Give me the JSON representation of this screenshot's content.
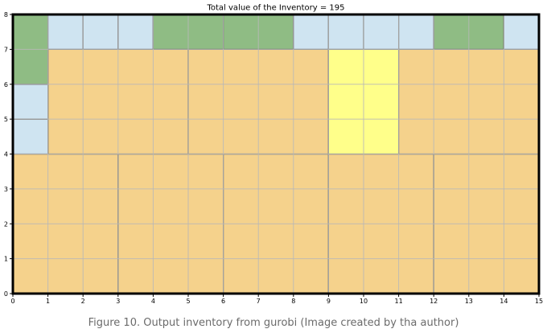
{
  "caption": "Figure 10. Output inventory from gurobi (Image created by tha author)",
  "colors": {
    "orange": "#f5d28c",
    "yellow": "#ffff8a",
    "green": "#8fbc84",
    "blue": "#cfe4f1",
    "grid": "#b8b8b8",
    "edge": "#000000"
  },
  "chart_data": {
    "type": "packing-layout",
    "title": "Total value of the Inventory = 195",
    "xlabel": "",
    "ylabel": "",
    "xlim": [
      0,
      15
    ],
    "ylim": [
      0,
      8
    ],
    "xticks": [
      0,
      1,
      2,
      3,
      4,
      5,
      6,
      7,
      8,
      9,
      10,
      11,
      12,
      13,
      14,
      15
    ],
    "yticks": [
      0,
      1,
      2,
      3,
      4,
      5,
      6,
      7,
      8
    ],
    "grid": true,
    "items": [
      {
        "x": 0,
        "y": 0,
        "w": 3,
        "h": 4,
        "color": "orange"
      },
      {
        "x": 3,
        "y": 0,
        "w": 3,
        "h": 4,
        "color": "orange"
      },
      {
        "x": 6,
        "y": 0,
        "w": 3,
        "h": 4,
        "color": "orange"
      },
      {
        "x": 9,
        "y": 0,
        "w": 3,
        "h": 4,
        "color": "orange"
      },
      {
        "x": 12,
        "y": 0,
        "w": 3,
        "h": 4,
        "color": "orange"
      },
      {
        "x": 1,
        "y": 4,
        "w": 4,
        "h": 3,
        "color": "orange"
      },
      {
        "x": 5,
        "y": 4,
        "w": 4,
        "h": 3,
        "color": "orange"
      },
      {
        "x": 9,
        "y": 4,
        "w": 2,
        "h": 3,
        "color": "yellow"
      },
      {
        "x": 11,
        "y": 4,
        "w": 4,
        "h": 3,
        "color": "orange"
      },
      {
        "x": 0,
        "y": 4,
        "w": 1,
        "h": 1,
        "color": "blue"
      },
      {
        "x": 0,
        "y": 5,
        "w": 1,
        "h": 1,
        "color": "blue"
      },
      {
        "x": 0,
        "y": 6,
        "w": 1,
        "h": 2,
        "color": "green"
      },
      {
        "x": 1,
        "y": 7,
        "w": 1,
        "h": 1,
        "color": "blue"
      },
      {
        "x": 2,
        "y": 7,
        "w": 1,
        "h": 1,
        "color": "blue"
      },
      {
        "x": 3,
        "y": 7,
        "w": 1,
        "h": 1,
        "color": "blue"
      },
      {
        "x": 4,
        "y": 7,
        "w": 2,
        "h": 1,
        "color": "green"
      },
      {
        "x": 6,
        "y": 7,
        "w": 2,
        "h": 1,
        "color": "green"
      },
      {
        "x": 8,
        "y": 7,
        "w": 1,
        "h": 1,
        "color": "blue"
      },
      {
        "x": 9,
        "y": 7,
        "w": 1,
        "h": 1,
        "color": "blue"
      },
      {
        "x": 10,
        "y": 7,
        "w": 1,
        "h": 1,
        "color": "blue"
      },
      {
        "x": 11,
        "y": 7,
        "w": 1,
        "h": 1,
        "color": "blue"
      },
      {
        "x": 12,
        "y": 7,
        "w": 2,
        "h": 1,
        "color": "green"
      },
      {
        "x": 14,
        "y": 7,
        "w": 1,
        "h": 1,
        "color": "blue"
      }
    ]
  }
}
